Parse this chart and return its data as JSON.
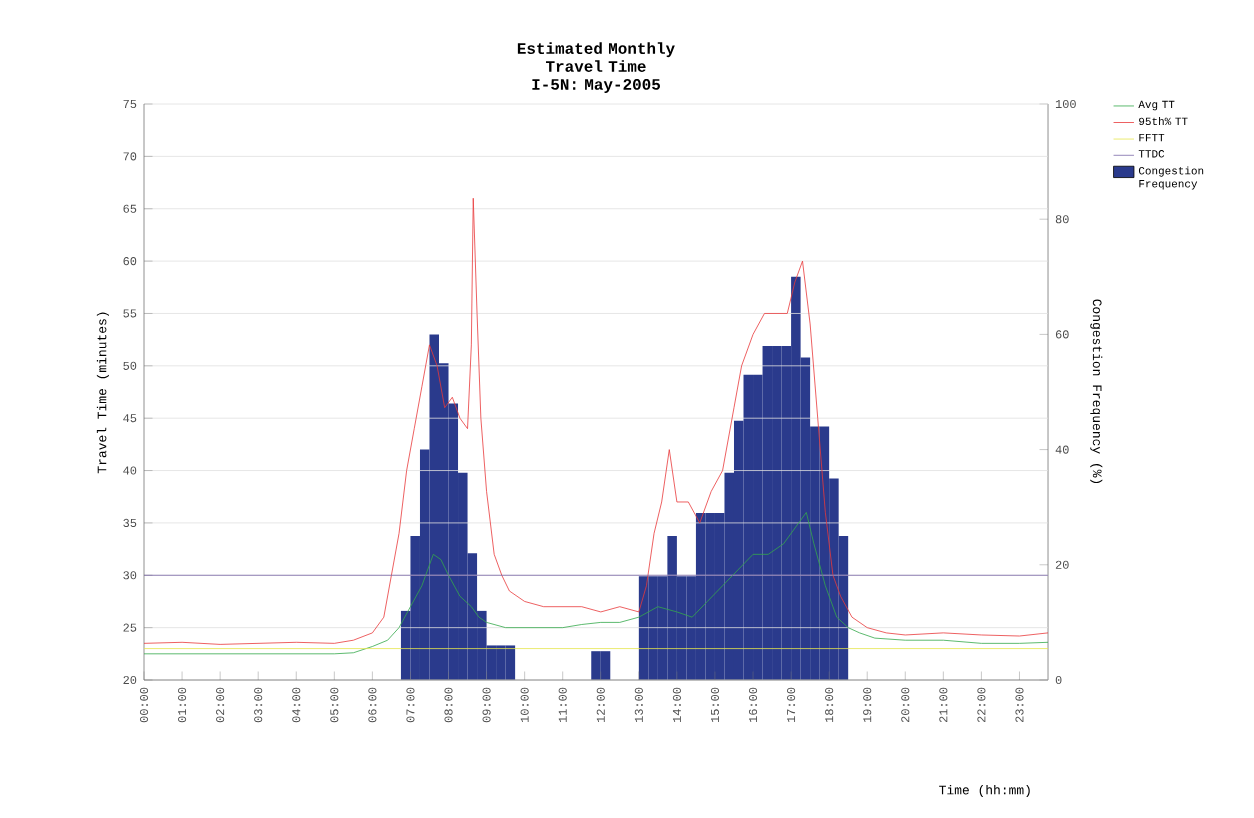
{
  "chart_data": {
    "type": "line",
    "title": "Estimated Monthly Travel Time",
    "subtitle": "I-5N: May-2005",
    "xlabel": "Time (hh:mm)",
    "ylabel": "Travel Time (minutes)",
    "y2label": "Congestion Frequency (%)",
    "xlim": [
      0,
      23.75
    ],
    "ylim": [
      20,
      75
    ],
    "y2lim": [
      0,
      100
    ],
    "xticks": [
      {
        "value": 0,
        "label": "00:00"
      },
      {
        "value": 1,
        "label": "01:00"
      },
      {
        "value": 2,
        "label": "02:00"
      },
      {
        "value": 3,
        "label": "03:00"
      },
      {
        "value": 4,
        "label": "04:00"
      },
      {
        "value": 5,
        "label": "05:00"
      },
      {
        "value": 6,
        "label": "06:00"
      },
      {
        "value": 7,
        "label": "07:00"
      },
      {
        "value": 8,
        "label": "08:00"
      },
      {
        "value": 9,
        "label": "09:00"
      },
      {
        "value": 10,
        "label": "10:00"
      },
      {
        "value": 11,
        "label": "11:00"
      },
      {
        "value": 12,
        "label": "12:00"
      },
      {
        "value": 13,
        "label": "13:00"
      },
      {
        "value": 14,
        "label": "14:00"
      },
      {
        "value": 15,
        "label": "15:00"
      },
      {
        "value": 16,
        "label": "16:00"
      },
      {
        "value": 17,
        "label": "17:00"
      },
      {
        "value": 18,
        "label": "18:00"
      },
      {
        "value": 19,
        "label": "19:00"
      },
      {
        "value": 20,
        "label": "20:00"
      },
      {
        "value": 21,
        "label": "21:00"
      },
      {
        "value": 22,
        "label": "22:00"
      },
      {
        "value": 23,
        "label": "23:00"
      }
    ],
    "yticks": [
      20,
      25,
      30,
      35,
      40,
      45,
      50,
      55,
      60,
      65,
      70,
      75
    ],
    "y2ticks": [
      0,
      20,
      40,
      60,
      80,
      100
    ],
    "grid": "y",
    "legend": "top right",
    "marker": "none",
    "line_style": "solid",
    "ref_lines": [
      {
        "axis": "y",
        "value": 23,
        "label": "FFTT",
        "color": "#e6e64c"
      },
      {
        "axis": "y",
        "value": 30,
        "label": "TTDC",
        "color": "#7b68a8"
      }
    ],
    "series": [
      {
        "name": "Avg TT",
        "color": "#33a84a",
        "x": [
          0,
          1,
          2,
          3,
          4,
          5,
          5.5,
          6,
          6.4,
          6.7,
          7.0,
          7.3,
          7.6,
          7.8,
          8.0,
          8.3,
          8.6,
          8.8,
          9.0,
          9.5,
          10,
          10.5,
          11,
          11.5,
          12,
          12.5,
          13,
          13.5,
          14,
          14.4,
          14.8,
          15.2,
          15.6,
          16,
          16.4,
          16.8,
          17.2,
          17.4,
          17.6,
          17.9,
          18.2,
          18.5,
          18.8,
          19.2,
          20,
          21,
          22,
          23,
          23.75
        ],
        "values": [
          22.5,
          22.5,
          22.5,
          22.5,
          22.5,
          22.5,
          22.6,
          23.2,
          23.8,
          25,
          27,
          29,
          32,
          31.5,
          30,
          28,
          27,
          26,
          25.5,
          25,
          25,
          25,
          25,
          25.3,
          25.5,
          25.5,
          26,
          27,
          26.5,
          26,
          27.5,
          29,
          30.5,
          32,
          32,
          33,
          35,
          36,
          33,
          29,
          26,
          25,
          24.5,
          24,
          23.8,
          23.8,
          23.5,
          23.5,
          23.6
        ]
      },
      {
        "name": "95th% TT",
        "color": "#e8393a",
        "x": [
          0,
          1,
          2,
          3,
          4,
          5,
          5.5,
          6,
          6.3,
          6.5,
          6.7,
          6.9,
          7.1,
          7.3,
          7.5,
          7.7,
          7.9,
          8.1,
          8.3,
          8.5,
          8.6,
          8.65,
          8.75,
          8.85,
          9.0,
          9.2,
          9.4,
          9.6,
          9.8,
          10,
          10.5,
          11,
          11.5,
          12,
          12.5,
          13,
          13.2,
          13.4,
          13.6,
          13.8,
          14.0,
          14.3,
          14.6,
          14.9,
          15.2,
          15.5,
          15.7,
          16.0,
          16.3,
          16.6,
          16.9,
          17.1,
          17.3,
          17.5,
          17.7,
          17.9,
          18.1,
          18.3,
          18.6,
          19,
          19.5,
          20,
          21,
          22,
          23,
          23.75
        ],
        "values": [
          23.5,
          23.6,
          23.4,
          23.5,
          23.6,
          23.5,
          23.8,
          24.5,
          26,
          30,
          34,
          40,
          44,
          48,
          52,
          50,
          46,
          47,
          45,
          44,
          52,
          66,
          55,
          45,
          38,
          32,
          30,
          28.5,
          28,
          27.5,
          27,
          27,
          27,
          26.5,
          27,
          26.5,
          29,
          34,
          37,
          42,
          37,
          37,
          35,
          38,
          40,
          46,
          50,
          53,
          55,
          55,
          55,
          58,
          60,
          54,
          45,
          36,
          30,
          28,
          26,
          25,
          24.5,
          24.3,
          24.5,
          24.3,
          24.2,
          24.5
        ]
      },
      {
        "name": "Congestion Frequency",
        "type": "bar",
        "axis": "y2",
        "color": "#2a3a8c",
        "x": [
          6.875,
          7.125,
          7.375,
          7.625,
          7.875,
          8.125,
          8.375,
          8.625,
          8.875,
          9.125,
          9.375,
          9.625,
          11.875,
          12.125,
          13.125,
          13.375,
          13.625,
          13.875,
          14.125,
          14.375,
          14.625,
          14.875,
          15.125,
          15.375,
          15.625,
          15.875,
          16.125,
          16.375,
          16.625,
          16.875,
          17.125,
          17.375,
          17.625,
          17.875,
          18.125,
          18.375
        ],
        "values": [
          12,
          25,
          40,
          60,
          55,
          48,
          36,
          22,
          12,
          6,
          6,
          6,
          5,
          5,
          18,
          18,
          18,
          25,
          18,
          18,
          29,
          29,
          29,
          36,
          45,
          53,
          53,
          58,
          58,
          58,
          70,
          56,
          44,
          44,
          35,
          25
        ]
      }
    ]
  }
}
